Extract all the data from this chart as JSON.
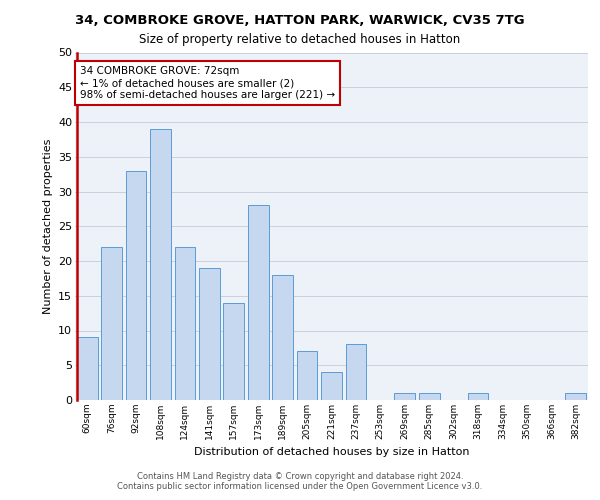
{
  "title1": "34, COMBROKE GROVE, HATTON PARK, WARWICK, CV35 7TG",
  "title2": "Size of property relative to detached houses in Hatton",
  "xlabel": "Distribution of detached houses by size in Hatton",
  "ylabel": "Number of detached properties",
  "bar_labels": [
    "60sqm",
    "76sqm",
    "92sqm",
    "108sqm",
    "124sqm",
    "141sqm",
    "157sqm",
    "173sqm",
    "189sqm",
    "205sqm",
    "221sqm",
    "237sqm",
    "253sqm",
    "269sqm",
    "285sqm",
    "302sqm",
    "318sqm",
    "334sqm",
    "350sqm",
    "366sqm",
    "382sqm"
  ],
  "bar_values": [
    9,
    22,
    33,
    39,
    22,
    19,
    14,
    28,
    18,
    7,
    4,
    8,
    0,
    1,
    1,
    0,
    1,
    0,
    0,
    0,
    1
  ],
  "bar_color": "#c5d8f0",
  "bar_edge_color": "#5b9bd5",
  "vline_color": "#c00000",
  "annotation_box_text": "34 COMBROKE GROVE: 72sqm\n← 1% of detached houses are smaller (2)\n98% of semi-detached houses are larger (221) →",
  "annotation_box_color": "#c00000",
  "ylim": [
    0,
    50
  ],
  "yticks": [
    0,
    5,
    10,
    15,
    20,
    25,
    30,
    35,
    40,
    45,
    50
  ],
  "grid_color": "#c8d0dc",
  "bg_color": "#edf2f9",
  "footer1": "Contains HM Land Registry data © Crown copyright and database right 2024.",
  "footer2": "Contains public sector information licensed under the Open Government Licence v3.0."
}
